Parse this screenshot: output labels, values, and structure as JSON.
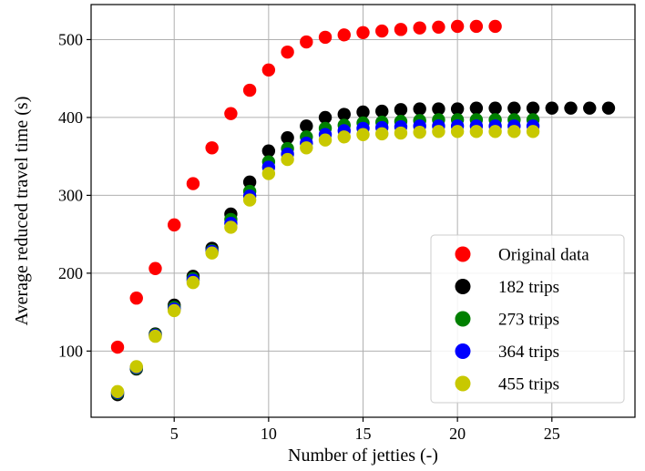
{
  "chart_data": {
    "type": "scatter",
    "title": "",
    "xlabel": "Number of jetties (-)",
    "ylabel": "Average reduced travel time (s)",
    "xlim": [
      0.6,
      29.4
    ],
    "ylim": [
      15,
      545
    ],
    "xticks": [
      5,
      10,
      15,
      20,
      25
    ],
    "yticks": [
      100,
      200,
      300,
      400,
      500
    ],
    "grid": true,
    "legend_position": "lower-right",
    "series": [
      {
        "name": "Original data",
        "color": "#ff0000",
        "x": [
          2,
          3,
          4,
          5,
          6,
          7,
          8,
          9,
          10,
          11,
          12,
          13,
          14,
          15,
          16,
          17,
          18,
          19,
          20,
          21,
          22
        ],
        "y": [
          105,
          168,
          206,
          262,
          315,
          361,
          405,
          435,
          461,
          484,
          497,
          503,
          506,
          509,
          511,
          513,
          515,
          516,
          517,
          517,
          517
        ]
      },
      {
        "name": "182 trips",
        "color": "#000000",
        "x": [
          2,
          3,
          4,
          5,
          6,
          7,
          8,
          9,
          10,
          11,
          12,
          13,
          14,
          15,
          16,
          17,
          18,
          19,
          20,
          21,
          22,
          23,
          24,
          25,
          26,
          27,
          28
        ],
        "y": [
          44,
          77,
          122,
          159,
          196,
          232,
          276,
          317,
          357,
          374,
          389,
          400,
          404,
          407,
          408,
          410,
          411,
          411,
          411,
          412,
          412,
          412,
          412,
          412,
          412,
          412,
          412
        ]
      },
      {
        "name": "273 trips",
        "color": "#008000",
        "x": [
          2,
          3,
          4,
          5,
          6,
          7,
          8,
          9,
          10,
          11,
          12,
          13,
          14,
          15,
          16,
          17,
          18,
          19,
          20,
          21,
          22,
          23,
          24
        ],
        "y": [
          46,
          78,
          121,
          156,
          193,
          229,
          269,
          305,
          343,
          360,
          375,
          386,
          390,
          393,
          394,
          395,
          396,
          397,
          397,
          397,
          397,
          397,
          397
        ]
      },
      {
        "name": "364 trips",
        "color": "#0000ff",
        "x": [
          2,
          3,
          4,
          5,
          6,
          7,
          8,
          9,
          10,
          11,
          12,
          13,
          14,
          15,
          16,
          17,
          18,
          19,
          20,
          21,
          22,
          23,
          24
        ],
        "y": [
          47,
          79,
          120,
          154,
          191,
          228,
          264,
          299,
          336,
          353,
          367,
          378,
          383,
          386,
          387,
          388,
          389,
          389,
          389,
          389,
          389,
          389,
          389
        ]
      },
      {
        "name": "455 trips",
        "color": "#c8c800",
        "x": [
          2,
          3,
          4,
          5,
          6,
          7,
          8,
          9,
          10,
          11,
          12,
          13,
          14,
          15,
          16,
          17,
          18,
          19,
          20,
          21,
          22,
          23,
          24
        ],
        "y": [
          48,
          80,
          119,
          152,
          188,
          226,
          259,
          294,
          328,
          346,
          361,
          371,
          375,
          378,
          379,
          380,
          381,
          382,
          382,
          382,
          382,
          382,
          382
        ]
      }
    ]
  }
}
